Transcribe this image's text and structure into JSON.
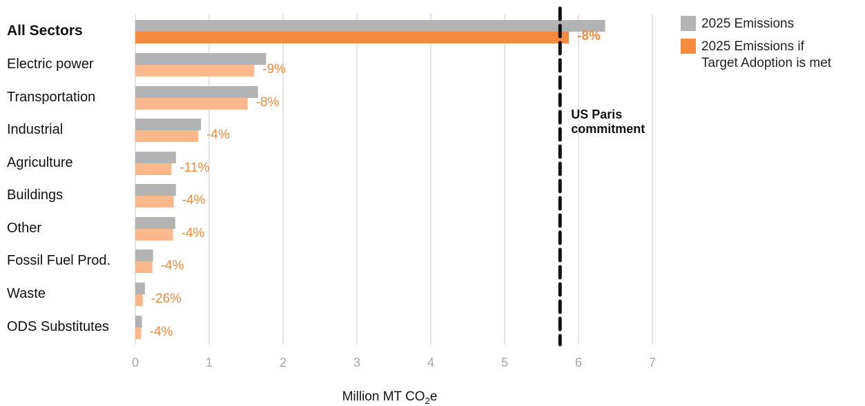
{
  "chart_data": {
    "type": "bar",
    "orientation": "horizontal",
    "categories": [
      "All Sectors",
      "Electric power",
      "Transportation",
      "Industrial",
      "Agriculture",
      "Buildings",
      "Other",
      "Fossil Fuel Prod.",
      "Waste",
      "ODS Substitutes"
    ],
    "series": [
      {
        "name": "2025 Emissions",
        "color": "#b3b3b3",
        "values": [
          6.36,
          1.77,
          1.66,
          0.89,
          0.55,
          0.55,
          0.54,
          0.24,
          0.13,
          0.09
        ]
      },
      {
        "name": "2025 Emissions if Target Adoption is met",
        "color": "#f58a3d",
        "light_color": "#f9b98c",
        "values": [
          5.87,
          1.61,
          1.52,
          0.85,
          0.49,
          0.52,
          0.51,
          0.23,
          0.1,
          0.08
        ]
      }
    ],
    "change_labels": [
      "-8%",
      "-9%",
      "-8%",
      "-4%",
      "-11%",
      "-4%",
      "-4%",
      "-4%",
      "-26%",
      "-4%"
    ],
    "x_ticks": [
      "0",
      "1",
      "2",
      "3",
      "4",
      "5",
      "6",
      "7"
    ],
    "xlim": [
      0,
      7
    ],
    "xlabel": "Million MT CO",
    "xlabel_sub": "2",
    "xlabel_tail": "e",
    "reference_line": {
      "value": 5.75,
      "label_line1": "US Paris",
      "label_line2": "commitment"
    },
    "legend": {
      "items": [
        {
          "line1": "2025 Emissions",
          "line2": "",
          "color": "#b3b3b3"
        },
        {
          "line1": "2025 Emissions if",
          "line2": "Target Adoption is met",
          "color": "#f58a3d"
        }
      ],
      "placement": "top-right"
    },
    "grid": true
  }
}
